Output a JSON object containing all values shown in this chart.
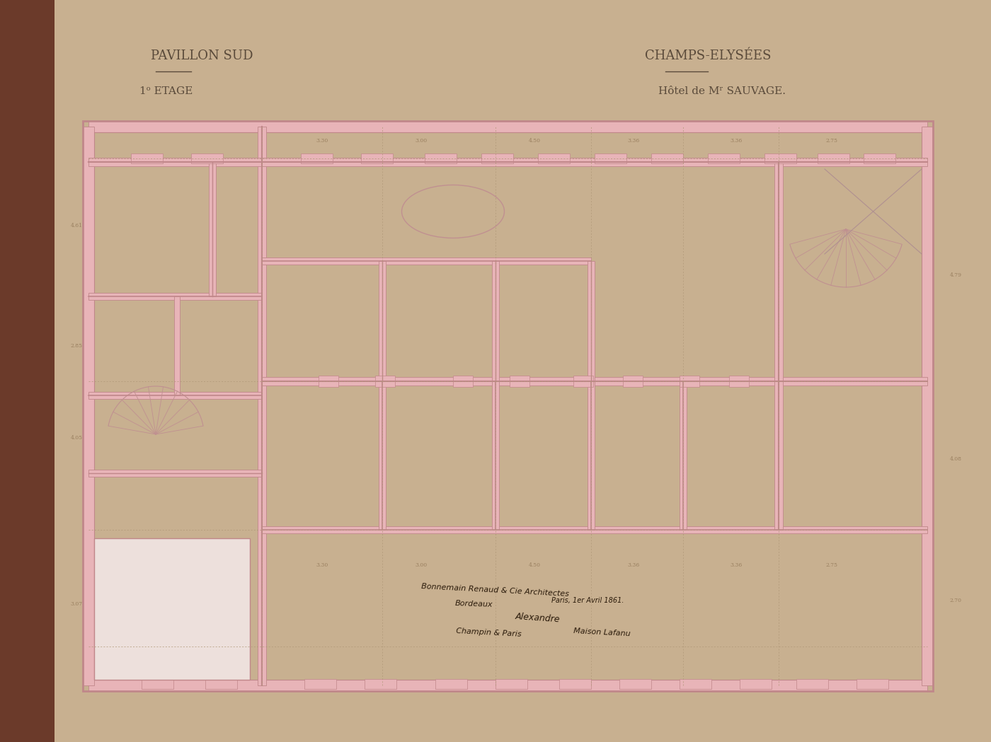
{
  "bg_color": "#f5ede8",
  "wall_color": "#e8b4b8",
  "line_color": "#c0878a",
  "text_color": "#5a4a3a",
  "dark_line": "#8b7355",
  "title_left": "PAVILLON SUD",
  "subtitle_left": "1ᵒ ETAGE",
  "title_right": "CHAMPS-ELYSÉES",
  "subtitle_right": "Hôtel de Mʳ SAUVAGE.",
  "spine_color": "#6b3a2a",
  "outer_bg": "#c8b090",
  "dim_color": "#9a8060"
}
